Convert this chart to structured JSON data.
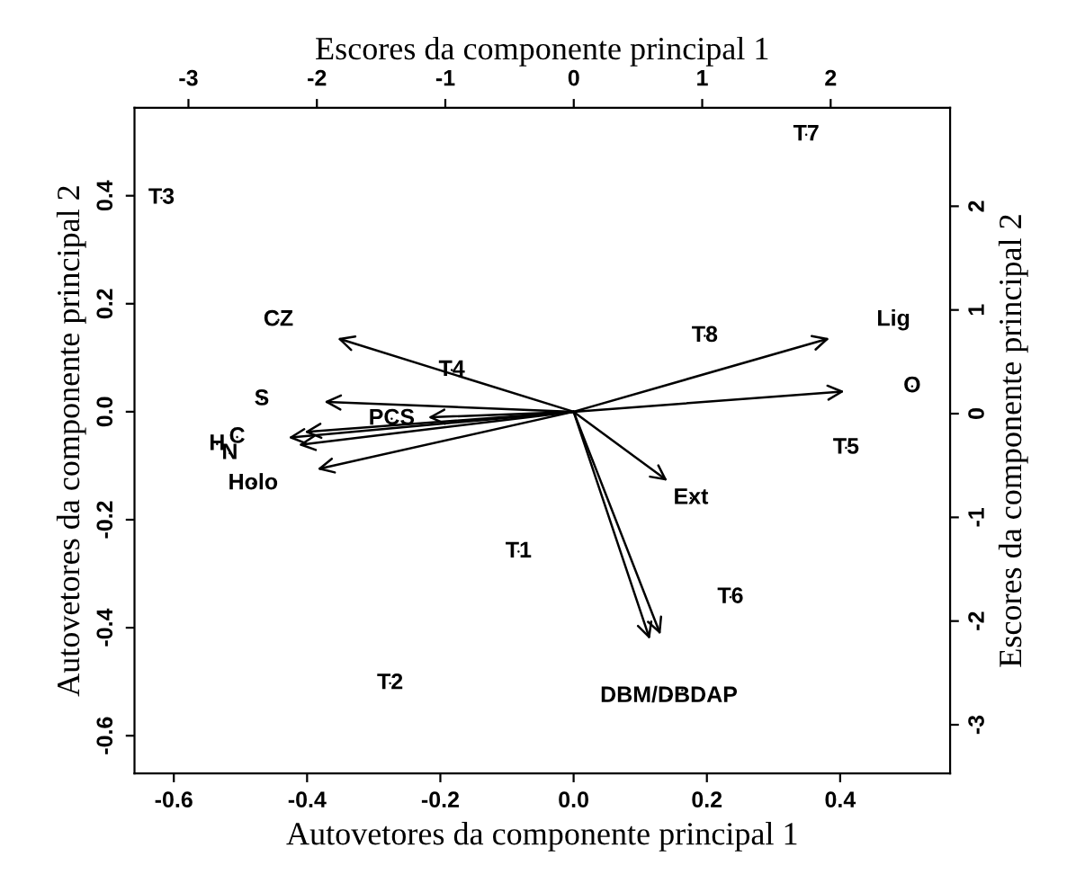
{
  "chart_data": [
    {
      "type": "scatter",
      "xlabel": "Autovetores da componente principal 1",
      "ylabel": "Autovetores da componente principal 2",
      "xlim": [
        -0.659,
        0.565
      ],
      "ylim": [
        -0.67,
        0.563
      ],
      "xticks": [
        {
          "value": -0.6,
          "label": "-0.6"
        },
        {
          "value": -0.4,
          "label": "-0.4"
        },
        {
          "value": -0.2,
          "label": "-0.2"
        },
        {
          "value": 0,
          "label": "0.0"
        },
        {
          "value": 0.2,
          "label": "0.2"
        },
        {
          "value": 0.4,
          "label": "0.4"
        }
      ],
      "yticks": [
        {
          "value": -0.6,
          "label": "-0.6"
        },
        {
          "value": -0.4,
          "label": "-0.4"
        },
        {
          "value": -0.2,
          "label": "-0.2"
        },
        {
          "value": 0,
          "label": "0.0"
        },
        {
          "value": 0.2,
          "label": "0.2"
        },
        {
          "value": 0.4,
          "label": "0.4"
        }
      ],
      "grid": false,
      "legend": false,
      "series": [
        {
          "color": "#000000",
          "x": [
            -0.443,
            0.48,
            0.508,
            -0.468,
            -0.273,
            -0.505,
            -0.535,
            -0.516,
            -0.481,
            0.176,
            0.143,
            0.163
          ],
          "values": [
            0.17,
            0.17,
            0.047,
            0.023,
            -0.013,
            -0.047,
            -0.06,
            -0.077,
            -0.133,
            -0.16,
            -0.527,
            -0.516
          ],
          "value_labels": [
            "CZ",
            "Lig",
            "O",
            "S",
            "PCS",
            "C",
            "H",
            "N",
            "Holo",
            "Ext",
            "DBM/DBDAP",
            null
          ]
        }
      ]
    },
    {
      "type": "scatter",
      "xlabel": "Escores da componente principal 1",
      "ylabel": "Escores da componente principal 2",
      "xlim": [
        -3.42,
        2.93
      ],
      "xticks": [
        -3,
        -2,
        -1,
        0,
        1,
        2
      ],
      "ylim": [
        -3.47,
        2.95
      ],
      "yticks": [
        -3,
        -2,
        -1,
        0,
        1,
        2
      ],
      "grid": false,
      "legend": false,
      "series": [
        {
          "color": "#000000",
          "x": [
            -0.43,
            -1.43,
            -3.21,
            -0.95,
            2.12,
            1.22,
            1.81,
            1.02
          ],
          "values": [
            -1.33,
            -2.6,
            2.08,
            0.42,
            -0.33,
            -1.77,
            2.69,
            0.75
          ],
          "value_labels": [
            "T1",
            "T2",
            "T3",
            "T4",
            "T5",
            "T6",
            "T7",
            "T8"
          ]
        }
      ]
    }
  ]
}
